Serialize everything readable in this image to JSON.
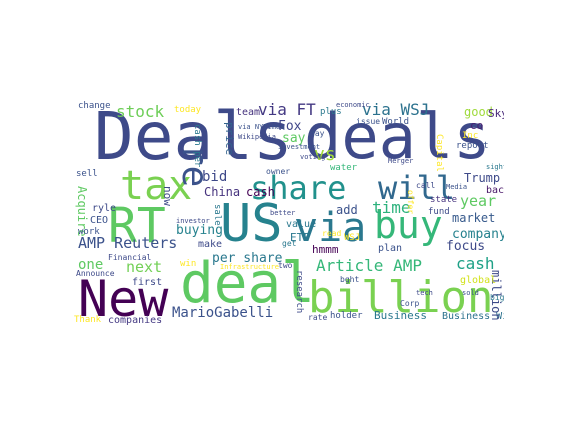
{
  "words": [
    {
      "text": "Deals",
      "color": "#3e4a89"
    },
    {
      "text": "deals",
      "color": "#3e4a89"
    },
    {
      "text": "New",
      "color": "#440154"
    },
    {
      "text": "deal",
      "color": "#5ec962"
    },
    {
      "text": "billion",
      "color": "#7ad151"
    },
    {
      "text": "RT",
      "color": "#5ec962"
    },
    {
      "text": "tax",
      "color": "#7ad151"
    },
    {
      "text": "US",
      "color": "#26828e"
    },
    {
      "text": "share",
      "color": "#21918c"
    },
    {
      "text": "will",
      "color": "#31688e"
    },
    {
      "text": "via",
      "color": "#2a788e"
    },
    {
      "text": "buy",
      "color": "#35b779"
    },
    {
      "text": "re",
      "color": "#3b528b"
    },
    {
      "text": "vs",
      "color": "#a0da39"
    },
    {
      "text": "stock",
      "color": "#6ece58"
    },
    {
      "text": "via FT",
      "color": "#443983"
    },
    {
      "text": "via WSJ",
      "color": "#2c728e"
    },
    {
      "text": "good",
      "color": "#9fda3a"
    },
    {
      "text": "Sky",
      "color": "#482878"
    },
    {
      "text": "co",
      "color": "#481f70"
    },
    {
      "text": "price",
      "color": "#33638d"
    },
    {
      "text": "Fox",
      "color": "#404688"
    },
    {
      "text": "say",
      "color": "#5ec962"
    },
    {
      "text": "bid",
      "color": "#3e4989"
    },
    {
      "text": "China",
      "color": "#46337e"
    },
    {
      "text": "cash",
      "color": "#440154"
    },
    {
      "text": "cash",
      "color": "#1fa187"
    },
    {
      "text": "Trump",
      "color": "#3e4a89"
    },
    {
      "text": "year",
      "color": "#5ec962"
    },
    {
      "text": "time",
      "color": "#2db27d"
    },
    {
      "text": "company",
      "color": "#26828e"
    },
    {
      "text": "market",
      "color": "#375a8c"
    },
    {
      "text": "back",
      "color": "#481668"
    },
    {
      "text": "AMP Reuters",
      "color": "#3b528b"
    },
    {
      "text": "buying",
      "color": "#26828e"
    },
    {
      "text": "per share",
      "color": "#2a788e"
    },
    {
      "text": "Article AMP",
      "color": "#35b779"
    },
    {
      "text": "focus",
      "color": "#3e4a89"
    },
    {
      "text": "next",
      "color": "#73d056"
    },
    {
      "text": "one",
      "color": "#5ec962"
    },
    {
      "text": "Acquire",
      "color": "#5ec962"
    },
    {
      "text": "CEO",
      "color": "#3b528b"
    },
    {
      "text": "ryle",
      "color": "#3e4a89"
    },
    {
      "text": "MarioGabelli",
      "color": "#3b528b"
    },
    {
      "text": "Business",
      "color": "#2a788e"
    },
    {
      "text": "Business Wire",
      "color": "#2c728e"
    },
    {
      "text": "companies",
      "color": "#443983"
    },
    {
      "text": "Thank",
      "color": "#fde725"
    },
    {
      "text": "first",
      "color": "#3e4a89"
    },
    {
      "text": "million",
      "color": "#3e4a89"
    },
    {
      "text": "global",
      "color": "#d2e21b"
    },
    {
      "text": "today",
      "color": "#fde725"
    },
    {
      "text": "team",
      "color": "#46337e"
    },
    {
      "text": "change",
      "color": "#3b528b"
    },
    {
      "text": "ETF",
      "color": "#2a788e"
    },
    {
      "text": "hmmm",
      "color": "#440154"
    },
    {
      "text": "add",
      "color": "#3b528b"
    },
    {
      "text": "make",
      "color": "#3e4a89"
    },
    {
      "text": "win",
      "color": "#fde725"
    },
    {
      "text": "now",
      "color": "#3e4a89"
    },
    {
      "text": "sell",
      "color": "#3b528b"
    },
    {
      "text": "work",
      "color": "#3b528b"
    },
    {
      "text": "fund",
      "color": "#3e4a89"
    },
    {
      "text": "state",
      "color": "#46337e"
    },
    {
      "text": "plan",
      "color": "#3b528b"
    },
    {
      "text": "value",
      "color": "#2a788e"
    },
    {
      "text": "holder",
      "color": "#3b528b"
    },
    {
      "text": "rate",
      "color": "#3e4a89"
    },
    {
      "text": "plus",
      "color": "#2a788e"
    },
    {
      "text": "World",
      "color": "#3b528b"
    },
    {
      "text": "Capital",
      "color": "#fde725"
    },
    {
      "text": "report",
      "color": "#3b528b"
    },
    {
      "text": "Inc",
      "color": "#fde725"
    },
    {
      "text": "Financial",
      "color": "#3e4a89"
    },
    {
      "text": "Announce",
      "color": "#3e4a89"
    },
    {
      "text": "water",
      "color": "#35b779"
    },
    {
      "text": "research",
      "color": "#3e4a89"
    },
    {
      "text": "issue",
      "color": "#3b528b"
    },
    {
      "text": "economic",
      "color": "#3e4a89"
    },
    {
      "text": "investment",
      "color": "#3b528b"
    },
    {
      "text": "better",
      "color": "#3e4a89"
    },
    {
      "text": "owner",
      "color": "#3b528b"
    },
    {
      "text": "investor",
      "color": "#3e4a89"
    },
    {
      "text": "offer",
      "color": "#fde725"
    },
    {
      "text": "Corp",
      "color": "#3b528b"
    },
    {
      "text": "sale",
      "color": "#2a788e"
    },
    {
      "text": "day",
      "color": "#3b528b"
    },
    {
      "text": "big",
      "color": "#2a788e"
    },
    {
      "text": "call",
      "color": "#3e4a89"
    },
    {
      "text": "read",
      "color": "#fde725"
    },
    {
      "text": "WSJ",
      "color": "#fde725"
    },
    {
      "text": "bght",
      "color": "#3b528b"
    },
    {
      "text": "get",
      "color": "#2a788e"
    },
    {
      "text": "two",
      "color": "#3e4a89"
    },
    {
      "text": "sold",
      "color": "#3b528b"
    },
    {
      "text": "Infrastructure",
      "color": "#fde725"
    },
    {
      "text": "Merger",
      "color": "#3e4a89"
    },
    {
      "text": "Media",
      "color": "#3b528b"
    },
    {
      "text": "tech",
      "color": "#3e4a89"
    },
    {
      "text": "sight",
      "color": "#2a788e"
    },
    {
      "text": "Wikipedia",
      "color": "#3e4a89"
    },
    {
      "text": "via NYTimes",
      "color": "#3b528b"
    },
    {
      "text": "voting",
      "color": "#3e4a89"
    },
    {
      "text": "cash per",
      "color": "#2a788e"
    }
  ]
}
